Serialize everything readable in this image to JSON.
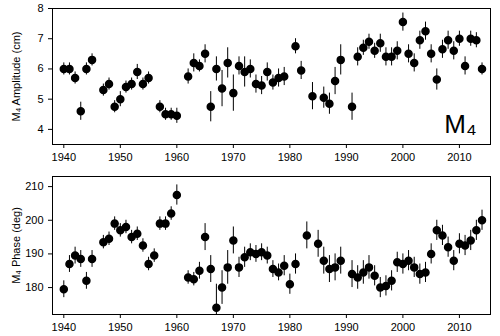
{
  "chart_data": [
    {
      "type": "scatter",
      "ylabel": "M₄ Amplitude (cm)",
      "annotation": "M₄",
      "color": "#000000",
      "marker": "circle",
      "xlim": [
        1938,
        2015.5
      ],
      "xticks": [
        1940,
        1950,
        1960,
        1970,
        1980,
        1990,
        2000,
        2010
      ],
      "ylim": [
        3.5,
        8
      ],
      "yticks": [
        4,
        5,
        6,
        7,
        8
      ],
      "x": [
        1940,
        1941,
        1942,
        1943,
        1944,
        1945,
        1947,
        1948,
        1949,
        1950,
        1951,
        1952,
        1953,
        1954,
        1955,
        1957,
        1958,
        1959,
        1960,
        1962,
        1963,
        1964,
        1965,
        1966,
        1967,
        1968,
        1969,
        1970,
        1971,
        1972,
        1973,
        1974,
        1975,
        1976,
        1977,
        1978,
        1979,
        1981,
        1982,
        1984,
        1986,
        1987,
        1988,
        1989,
        1991,
        1992,
        1993,
        1994,
        1995,
        1996,
        1997,
        1998,
        1999,
        2000,
        2001,
        2002,
        2003,
        2004,
        2005,
        2006,
        2007,
        2008,
        2009,
        2010,
        2011,
        2012,
        2013,
        2014
      ],
      "values": [
        6.0,
        6.0,
        5.7,
        4.6,
        6.0,
        6.3,
        5.3,
        5.5,
        4.75,
        5.0,
        5.4,
        5.5,
        5.9,
        5.5,
        5.7,
        4.75,
        4.5,
        4.5,
        4.45,
        5.75,
        6.2,
        6.1,
        6.5,
        4.75,
        6.0,
        5.35,
        6.2,
        5.2,
        6.1,
        5.9,
        6.0,
        5.5,
        5.45,
        5.9,
        5.55,
        5.7,
        5.75,
        6.75,
        5.95,
        5.1,
        5.05,
        4.85,
        5.6,
        6.3,
        4.75,
        6.4,
        6.7,
        6.9,
        6.6,
        6.85,
        6.4,
        6.4,
        6.6,
        7.55,
        6.5,
        6.2,
        6.95,
        7.25,
        6.5,
        5.65,
        6.65,
        6.95,
        6.6,
        7.0,
        6.1,
        7.0,
        6.95,
        6.0
      ],
      "errors": [
        0.2,
        0.2,
        0.2,
        0.3,
        0.2,
        0.2,
        0.2,
        0.2,
        0.2,
        0.25,
        0.2,
        0.2,
        0.25,
        0.2,
        0.2,
        0.2,
        0.2,
        0.2,
        0.25,
        0.25,
        0.3,
        0.2,
        0.3,
        0.5,
        0.4,
        0.6,
        0.5,
        0.6,
        0.3,
        0.5,
        0.3,
        0.3,
        0.3,
        0.3,
        0.25,
        0.3,
        0.3,
        0.25,
        0.3,
        0.45,
        0.35,
        0.35,
        0.45,
        0.5,
        0.45,
        0.3,
        0.25,
        0.25,
        0.25,
        0.3,
        0.3,
        0.3,
        0.3,
        0.3,
        0.3,
        0.3,
        0.3,
        0.3,
        0.3,
        0.35,
        0.3,
        0.3,
        0.3,
        0.25,
        0.3,
        0.25,
        0.25,
        0.2
      ]
    },
    {
      "type": "scatter",
      "ylabel": "M₄ Phase (deg)",
      "color": "#000000",
      "marker": "circle",
      "xlim": [
        1938,
        2015.5
      ],
      "xticks": [
        1940,
        1950,
        1960,
        1970,
        1980,
        1990,
        2000,
        2010
      ],
      "ylim": [
        172,
        213
      ],
      "yticks": [
        180,
        190,
        200,
        210
      ],
      "x": [
        1940,
        1941,
        1942,
        1943,
        1944,
        1945,
        1947,
        1948,
        1949,
        1950,
        1951,
        1952,
        1953,
        1954,
        1955,
        1956,
        1957,
        1958,
        1959,
        1960,
        1962,
        1963,
        1964,
        1965,
        1966,
        1967,
        1968,
        1969,
        1970,
        1971,
        1972,
        1973,
        1974,
        1975,
        1976,
        1977,
        1978,
        1979,
        1980,
        1981,
        1983,
        1985,
        1986,
        1987,
        1988,
        1989,
        1991,
        1992,
        1993,
        1994,
        1995,
        1996,
        1997,
        1998,
        1999,
        2000,
        2001,
        2002,
        2003,
        2004,
        2005,
        2006,
        2007,
        2008,
        2009,
        2010,
        2011,
        2012,
        2013,
        2014
      ],
      "values": [
        179.5,
        187,
        189.5,
        188.5,
        182,
        188.5,
        193.5,
        194.5,
        199,
        197,
        198,
        195,
        196,
        192.5,
        187,
        189.5,
        199,
        199,
        202,
        207.5,
        183,
        182.5,
        185,
        195,
        185.5,
        174,
        180,
        186,
        194,
        186,
        189,
        190.5,
        190,
        190.5,
        189.5,
        185.5,
        184.5,
        186.5,
        181,
        187,
        195.5,
        193,
        188,
        185.5,
        186,
        188,
        184,
        183,
        184.5,
        186,
        183.5,
        180,
        180.5,
        182,
        187.5,
        187,
        188,
        186,
        184,
        184.5,
        190,
        197,
        195.5,
        192,
        188,
        193,
        192.5,
        194,
        197,
        200
      ],
      "errors": [
        2.5,
        2.5,
        2.5,
        2.5,
        2.5,
        2.5,
        2,
        2,
        2,
        2,
        2,
        2,
        2,
        2,
        2,
        2,
        2,
        2,
        2,
        3,
        2,
        2,
        2.5,
        4,
        4,
        7,
        5,
        5,
        4,
        3,
        3,
        2.5,
        2.5,
        2.5,
        2.5,
        2.5,
        2.5,
        3,
        3,
        3,
        4,
        4,
        4,
        4,
        4,
        4,
        4,
        3.5,
        3.5,
        3.5,
        3,
        3,
        3,
        3,
        3,
        3,
        3,
        3,
        3,
        3,
        3,
        3,
        3,
        3,
        3,
        3,
        3,
        3,
        3,
        3
      ]
    }
  ]
}
